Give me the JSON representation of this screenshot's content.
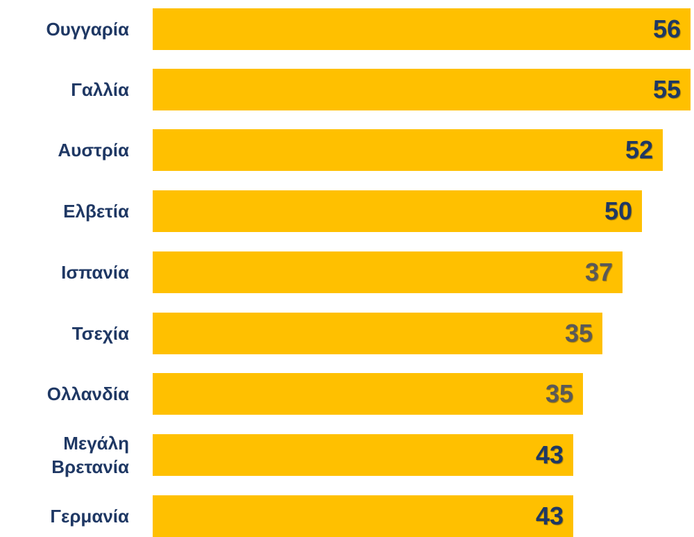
{
  "rows": [
    {
      "label": "Ουγγαρία",
      "value": "56",
      "color": "#1f3864"
    },
    {
      "label": "Γαλλία",
      "value": "55",
      "color": "#1f3864"
    },
    {
      "label": "Αυστρία",
      "value": "52",
      "color": "#1f3864"
    },
    {
      "label": "Ελβετία",
      "value": "50",
      "color": "#1f3864"
    },
    {
      "label": "Ισπανία",
      "value": "37",
      "color": "#595959"
    },
    {
      "label": "Τσεχία",
      "value": "35",
      "color": "#595959"
    },
    {
      "label": "Ολλανδία",
      "value": "35",
      "color": "#595959"
    },
    {
      "label": "Μεγάλη Βρετανία",
      "value": "43",
      "color": "#1f3864"
    },
    {
      "label": "Γερμανία",
      "value": "43",
      "color": "#1f3864"
    }
  ],
  "bar_color": "#ffc000"
}
